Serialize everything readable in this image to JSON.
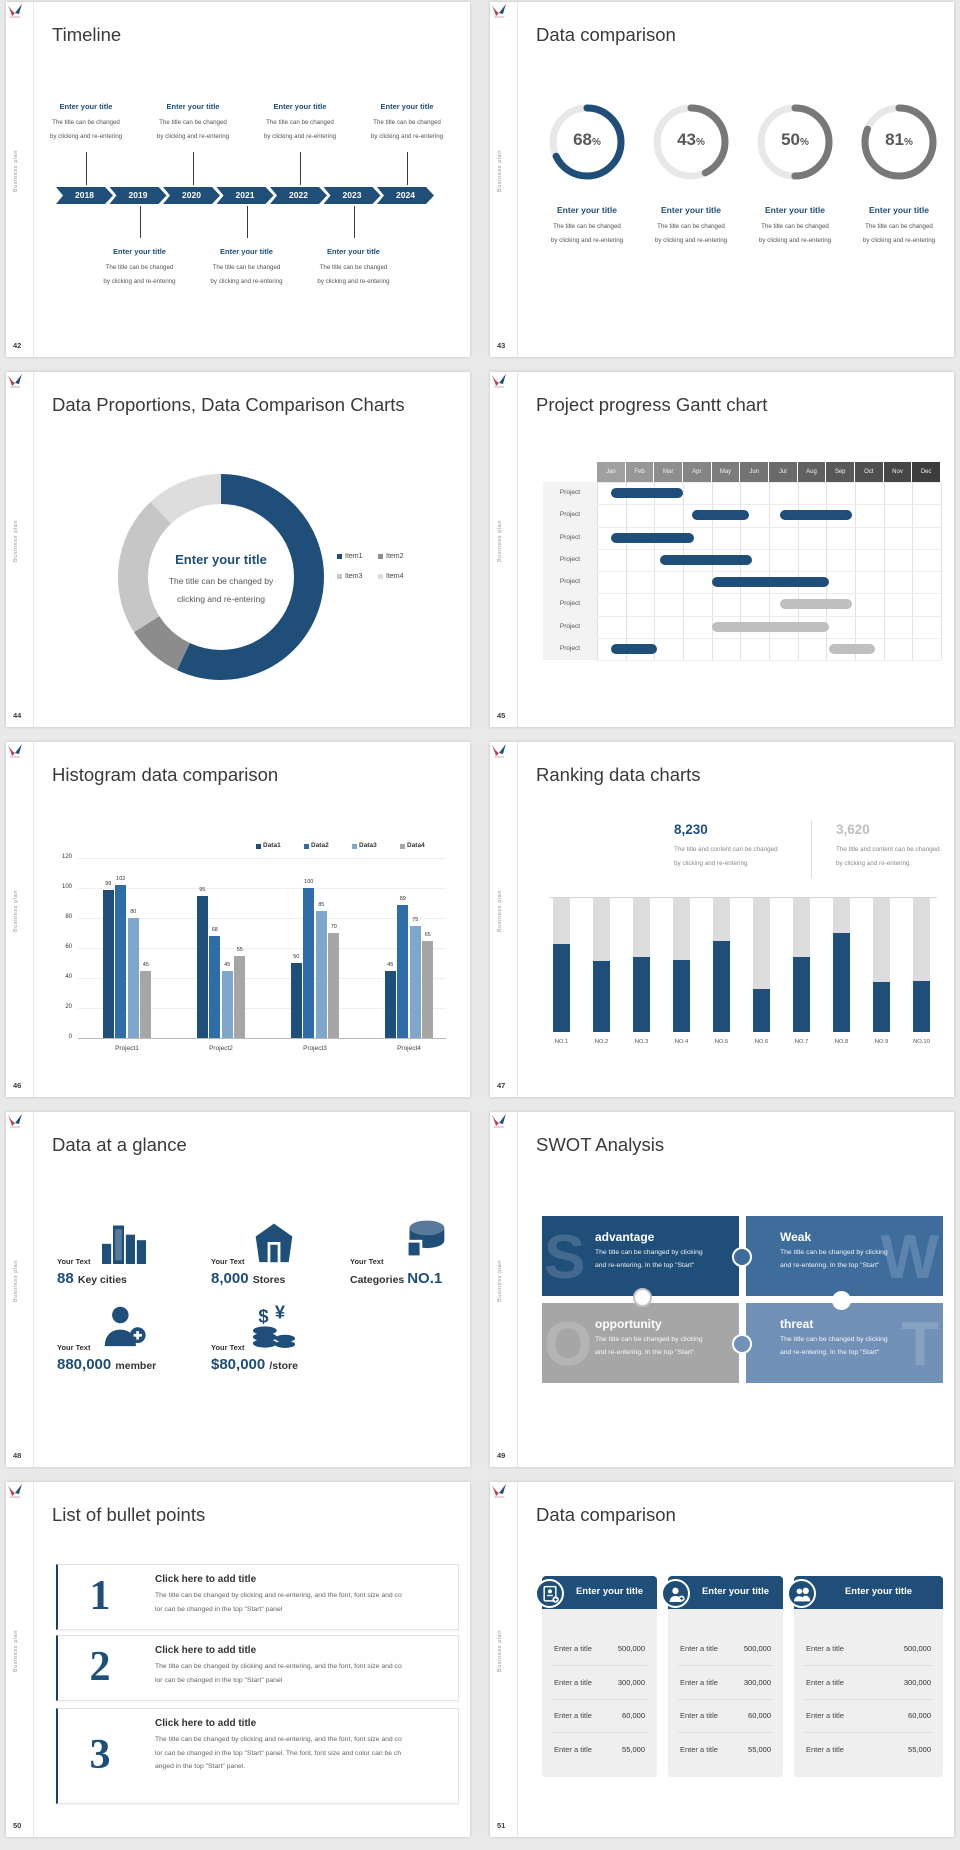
{
  "page": {
    "background": "#e9e9e9"
  },
  "shared": {
    "brand_vertical_text": "Business plan",
    "brand_logo": "bird-logo",
    "accent_navy": "#1F4E79",
    "accent_gray": "#A6A6A6"
  },
  "slides": {
    "s42": {
      "number": "42",
      "title": "Timeline",
      "years": [
        "2018",
        "2019",
        "2020",
        "2021",
        "2022",
        "2023",
        "2024"
      ],
      "top_items": [
        {
          "title": "Enter your title",
          "lines": [
            "The title can be changed",
            "by clicking and re-entering"
          ]
        },
        {
          "title": "Enter your title",
          "lines": [
            "The title can be changed",
            "by clicking and re-entering"
          ]
        },
        {
          "title": "Enter your title",
          "lines": [
            "The title can be changed",
            "by clicking and re-entering"
          ]
        },
        {
          "title": "Enter your title",
          "lines": [
            "The title can be changed",
            "by clicking and re-entering"
          ]
        }
      ],
      "bottom_items": [
        {
          "title": "Enter your title",
          "lines": [
            "The title can be changed",
            "by clicking and re-entering"
          ]
        },
        {
          "title": "Enter your title",
          "lines": [
            "The title can be changed",
            "by clicking and re-entering"
          ]
        },
        {
          "title": "Enter your title",
          "lines": [
            "The title can be changed",
            "by clicking and re-entering"
          ]
        }
      ]
    },
    "s43": {
      "number": "43",
      "title": "Data comparison",
      "items": [
        {
          "pct": "68",
          "unit": "%",
          "title": "Enter your title",
          "lines": [
            "The title can be changed",
            "by clicking and re-entering"
          ]
        },
        {
          "pct": "43",
          "unit": "%",
          "title": "Enter your title",
          "lines": [
            "The title can be changed",
            "by clicking and re-entering"
          ]
        },
        {
          "pct": "50",
          "unit": "%",
          "title": "Enter your title",
          "lines": [
            "The title can be changed",
            "by clicking and re-entering"
          ]
        },
        {
          "pct": "81",
          "unit": "%",
          "title": "Enter your title",
          "lines": [
            "The title can be changed",
            "by clicking and re-entering"
          ]
        }
      ]
    },
    "s44": {
      "number": "44",
      "title": "Data Proportions, Data Comparison Charts",
      "center_title": "Enter your title",
      "center_lines": [
        "The title can be changed by",
        "clicking and re-entering"
      ]
    },
    "s45": {
      "number": "45",
      "title": "Project progress Gantt chart"
    },
    "s46": {
      "number": "46",
      "title": "Histogram data comparison"
    },
    "s47": {
      "number": "47",
      "title": "Ranking data charts",
      "stat_primary": "8,230",
      "stat_secondary": "3,620",
      "caption_lines": [
        "The title and content can be changed",
        "by clicking and re-entering"
      ]
    },
    "s48": {
      "number": "48",
      "title": "Data at a glance",
      "stats": [
        {
          "label": "Your Text",
          "value": "88",
          "unit": "Key cities",
          "icon": "city-buildings-icon",
          "reversed": false
        },
        {
          "label": "Your Text",
          "value": "8,000",
          "unit": "Stores",
          "icon": "store-icon",
          "reversed": false
        },
        {
          "label": "Your Text",
          "value": "NO.1",
          "unit": "Categories",
          "icon": "pie-database-icon",
          "reversed": true
        },
        {
          "label": "Your Text",
          "value": "880,000",
          "unit": "member",
          "icon": "member-add-icon",
          "reversed": false
        },
        {
          "label": "Your Text",
          "value": "$80,000",
          "unit": "/store",
          "icon": "coins-icon",
          "reversed": false
        }
      ]
    },
    "s49": {
      "number": "49",
      "title": "SWOT Analysis",
      "quadrants": [
        {
          "letter": "S",
          "title": "advantage",
          "color": "#1F4E79",
          "lines": [
            "The title can be changed by clicking",
            "and re-entering. In the top \"Start\""
          ]
        },
        {
          "letter": "W",
          "title": "Weak",
          "color": "#3E6D9C",
          "lines": [
            "The title can be changed by clicking",
            "and re-entering. In the top \"Start\""
          ]
        },
        {
          "letter": "O",
          "title": "opportunity",
          "color": "#A6A6A6",
          "lines": [
            "The title can be changed by clicking",
            "and re-entering. In the top \"Start\""
          ]
        },
        {
          "letter": "T",
          "title": "threat",
          "color": "#7191B6",
          "lines": [
            "The title can be changed by clicking",
            "and re-entering. In the top \"Start\""
          ]
        }
      ]
    },
    "s50": {
      "number": "50",
      "title": "List of bullet points",
      "items": [
        {
          "num": "1",
          "title": "Click here to add title",
          "lines": [
            "The title can be changed by clicking and re-entering, and the font, font size and co",
            "lor can be changed in the top \"Start\" panel"
          ]
        },
        {
          "num": "2",
          "title": "Click here to add title",
          "lines": [
            "The title can be changed by clicking and re-entering, and the font, font size and co",
            "lor can be changed in the top \"Start\" panel"
          ]
        },
        {
          "num": "3",
          "title": "Click here to add title",
          "lines": [
            "The title can be changed by clicking and re-entering, and the font, font size and co",
            "lor can be changed in the top \"Start\" panel. The font, font size and color can be ch",
            "anged in the top \"Start\" panel."
          ]
        }
      ]
    },
    "s51": {
      "number": "51",
      "title": "Data comparison",
      "cards": [
        {
          "header": "Enter your title",
          "icon": "id-card-icon"
        },
        {
          "header": "Enter your title",
          "icon": "person-add-icon"
        },
        {
          "header": "Enter your title",
          "icon": "people-icon"
        }
      ],
      "rows": [
        {
          "label": "Enter a title",
          "value": "500,000"
        },
        {
          "label": "Enter a title",
          "value": "300,000"
        },
        {
          "label": "Enter a title",
          "value": "60,000"
        },
        {
          "label": "Enter a title",
          "value": "55,000"
        }
      ]
    }
  },
  "chart_data": [
    {
      "id": "progress-rings-43",
      "type": "pie",
      "values": [
        68,
        43,
        50,
        81
      ],
      "unit": "%",
      "arc_colors": [
        "#1F4E79",
        "#787878",
        "#787878",
        "#787878"
      ],
      "track_color": "#E8E8E8",
      "value_color": "#595959"
    },
    {
      "id": "donut-44",
      "type": "pie",
      "series_labels": [
        "Item1",
        "Item2",
        "Item3",
        "Item4"
      ],
      "values": [
        57,
        9,
        22,
        12
      ],
      "colors": [
        "#1F4E79",
        "#8C8C8C",
        "#C6C6C6",
        "#DDDDDD"
      ],
      "legend_position": "right"
    },
    {
      "id": "gantt-45",
      "type": "table",
      "months": [
        "Jan",
        "Feb",
        "Mar",
        "Apr",
        "May",
        "Jun",
        "Jul",
        "Aug",
        "Sep",
        "Oct",
        "Nov",
        "Dec"
      ],
      "month_shades": [
        "#A0A0A0",
        "#979797",
        "#8E8E8E",
        "#858585",
        "#7C7C7C",
        "#737373",
        "#6A6A6A",
        "#616161",
        "#585858",
        "#4F4F4F",
        "#464646",
        "#3D3D3D"
      ],
      "bar_colors": {
        "blue": "#1F4E79",
        "gray": "#BFBFBF"
      },
      "rows": [
        {
          "label": "Project",
          "bars": [
            {
              "start": 0.5,
              "end": 3.0,
              "color": "blue"
            }
          ]
        },
        {
          "label": "Project",
          "bars": [
            {
              "start": 3.3,
              "end": 5.3,
              "color": "blue"
            },
            {
              "start": 6.4,
              "end": 8.9,
              "color": "blue"
            }
          ]
        },
        {
          "label": "Project",
          "bars": [
            {
              "start": 0.5,
              "end": 3.4,
              "color": "blue"
            }
          ]
        },
        {
          "label": "Project",
          "bars": [
            {
              "start": 2.2,
              "end": 5.4,
              "color": "blue"
            }
          ]
        },
        {
          "label": "Project",
          "bars": [
            {
              "start": 4.0,
              "end": 8.1,
              "color": "blue"
            }
          ]
        },
        {
          "label": "Project",
          "bars": [
            {
              "start": 6.4,
              "end": 8.9,
              "color": "gray"
            }
          ]
        },
        {
          "label": "Project",
          "bars": [
            {
              "start": 4.0,
              "end": 8.1,
              "color": "gray"
            }
          ]
        },
        {
          "label": "Project",
          "bars": [
            {
              "start": 0.5,
              "end": 2.1,
              "color": "blue"
            },
            {
              "start": 8.1,
              "end": 9.7,
              "color": "gray"
            }
          ]
        }
      ]
    },
    {
      "id": "histogram-46",
      "type": "bar",
      "categories": [
        "Project1",
        "Project2",
        "Project3",
        "Project4"
      ],
      "series": [
        {
          "name": "Data1",
          "color": "#1F4E79",
          "values": [
            99,
            95,
            50,
            45
          ]
        },
        {
          "name": "Data2",
          "color": "#2E6DA8",
          "values": [
            102,
            68,
            100,
            89
          ]
        },
        {
          "name": "Data3",
          "color": "#7FA7CB",
          "values": [
            80,
            45,
            85,
            75
          ]
        },
        {
          "name": "Data4",
          "color": "#A6A6A6",
          "values": [
            45,
            55,
            70,
            65
          ]
        }
      ],
      "ylim": [
        0,
        120
      ],
      "yticks": [
        0,
        20,
        40,
        60,
        80,
        100,
        120
      ],
      "grid": true,
      "legend_position": "top-right"
    },
    {
      "id": "ranking-47",
      "type": "bar",
      "categories": [
        "NO.1",
        "NO.2",
        "NO.3",
        "NO.4",
        "NO.5",
        "NO.6",
        "NO.7",
        "NO.8",
        "NO.9",
        "NO.10"
      ],
      "values_pct_of_max": [
        66,
        53,
        56,
        54,
        68,
        32,
        56,
        74,
        37,
        38
      ],
      "bar_color": "#1F4E79",
      "track_color": "#DCDCDC"
    }
  ]
}
